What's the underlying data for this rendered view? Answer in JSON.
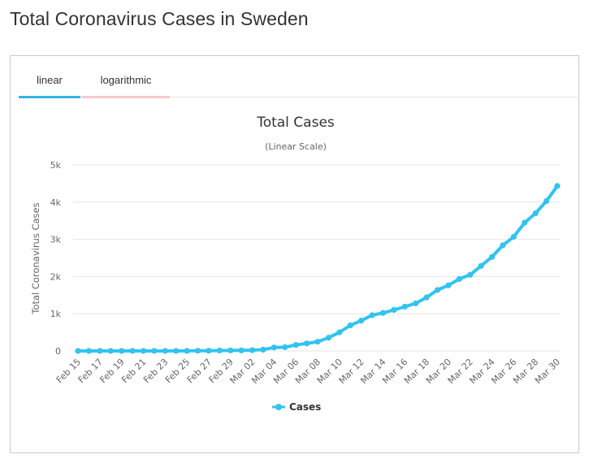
{
  "page": {
    "title": "Total Coronavirus Cases in Sweden"
  },
  "tabs": [
    {
      "label": "linear",
      "active": true
    },
    {
      "label": "logarithmic",
      "active": false
    }
  ],
  "colors": {
    "series": "#33c3ee",
    "tab_active": "#33b5e5",
    "tab_inactive": "#f8c8cc"
  },
  "chart_data": {
    "type": "line",
    "title": "Total Cases",
    "subtitle": "(Linear Scale)",
    "ylabel": "Total Coronavirus Cases",
    "xlabel": "",
    "ylim": [
      0,
      5000
    ],
    "y_ticks": [
      0,
      1000,
      2000,
      3000,
      4000,
      5000
    ],
    "y_tick_labels": [
      "0",
      "1k",
      "2k",
      "3k",
      "4k",
      "5k"
    ],
    "legend": "bottom-center",
    "x": [
      "Feb 15",
      "Feb 16",
      "Feb 17",
      "Feb 18",
      "Feb 19",
      "Feb 20",
      "Feb 21",
      "Feb 22",
      "Feb 23",
      "Feb 24",
      "Feb 25",
      "Feb 26",
      "Feb 27",
      "Feb 28",
      "Feb 29",
      "Mar 01",
      "Mar 02",
      "Mar 03",
      "Mar 04",
      "Mar 05",
      "Mar 06",
      "Mar 07",
      "Mar 08",
      "Mar 09",
      "Mar 10",
      "Mar 11",
      "Mar 12",
      "Mar 13",
      "Mar 14",
      "Mar 15",
      "Mar 16",
      "Mar 17",
      "Mar 18",
      "Mar 19",
      "Mar 20",
      "Mar 21",
      "Mar 22",
      "Mar 23",
      "Mar 24",
      "Mar 25",
      "Mar 26",
      "Mar 27",
      "Mar 28",
      "Mar 29",
      "Mar 30"
    ],
    "x_tick_labels": [
      "Feb 15",
      "Feb 17",
      "Feb 19",
      "Feb 21",
      "Feb 23",
      "Feb 25",
      "Feb 27",
      "Feb 29",
      "Mar 02",
      "Mar 04",
      "Mar 06",
      "Mar 08",
      "Mar 10",
      "Mar 12",
      "Mar 14",
      "Mar 16",
      "Mar 18",
      "Mar 20",
      "Mar 22",
      "Mar 24",
      "Mar 26",
      "Mar 28",
      "Mar 30"
    ],
    "series": [
      {
        "name": "Cases",
        "values": [
          1,
          1,
          1,
          1,
          1,
          1,
          1,
          1,
          1,
          1,
          2,
          7,
          7,
          12,
          14,
          15,
          21,
          35,
          94,
          101,
          161,
          203,
          248,
          355,
          500,
          687,
          814,
          961,
          1022,
          1103,
          1190,
          1279,
          1439,
          1639,
          1763,
          1934,
          2046,
          2286,
          2526,
          2840,
          3069,
          3447,
          3700,
          4028,
          4435
        ]
      }
    ]
  }
}
